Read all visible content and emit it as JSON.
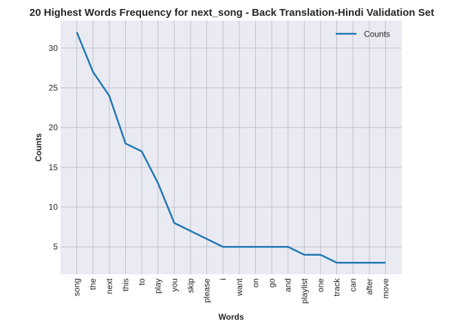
{
  "chart_data": {
    "type": "line",
    "title": "20 Highest Words Frequency for next_song - Back Translation-Hindi Validation Set",
    "xlabel": "Words",
    "ylabel": "Counts",
    "categories": [
      "song",
      "the",
      "next",
      "this",
      "to",
      "play",
      "you",
      "skip",
      "please",
      "i",
      "want",
      "on",
      "go",
      "and",
      "playlist",
      "one",
      "track",
      "can",
      "after",
      "move"
    ],
    "series": [
      {
        "name": "Counts",
        "values": [
          32,
          27,
          24,
          18,
          17,
          13,
          8,
          7,
          6,
          5,
          5,
          5,
          5,
          5,
          4,
          4,
          3,
          3,
          3,
          3
        ]
      }
    ],
    "yticks": [
      5,
      10,
      15,
      20,
      25,
      30
    ],
    "ylim": [
      1.55,
      33.45
    ],
    "grid": true,
    "legend": "top-right",
    "colors": {
      "line": "#1f77b4",
      "plot_bg": "#eaeaf2",
      "grid": "#c0c0c8"
    }
  }
}
